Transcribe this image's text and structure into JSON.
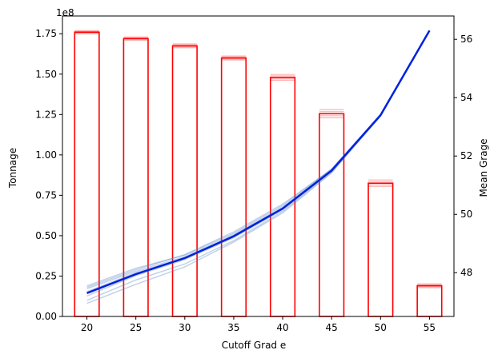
{
  "chart_data": {
    "type": "bar",
    "xlabel": "Cutoff Grad e",
    "ylabel_left": "Tonnage",
    "ylabel_right": "Mean Grage",
    "left_exponent_label": "1e8",
    "x_ticks": [
      20,
      25,
      30,
      35,
      40,
      45,
      50,
      55
    ],
    "x_tick_labels": [
      "20",
      "25",
      "30",
      "35",
      "40",
      "45",
      "50",
      "55"
    ],
    "xlim": [
      17.5,
      57.5
    ],
    "left_ylim": [
      0,
      1.86
    ],
    "left_y_ticks": [
      0,
      0.25,
      0.5,
      0.75,
      1.0,
      1.25,
      1.5,
      1.75
    ],
    "left_y_tick_labels": [
      "0.00",
      "0.25",
      "0.50",
      "0.75",
      "1.00",
      "1.25",
      "1.50",
      "1.75"
    ],
    "right_ylim": [
      46.5,
      56.8
    ],
    "right_y_ticks": [
      48,
      50,
      52,
      54,
      56
    ],
    "right_y_tick_labels": [
      "48",
      "50",
      "52",
      "54",
      "56"
    ],
    "bar_width": 2.5,
    "bars": {
      "color": "#ff0000",
      "x": [
        20,
        25,
        30,
        35,
        40,
        45,
        50,
        55
      ],
      "values": [
        1.76,
        1.72,
        1.675,
        1.6,
        1.48,
        1.255,
        0.825,
        0.19
      ],
      "spread": [
        0.01,
        0.01,
        0.012,
        0.012,
        0.018,
        0.025,
        0.02,
        0.012
      ]
    },
    "mean_grade_line": {
      "color": "#0022dd",
      "x": [
        20,
        25,
        30,
        35,
        40,
        45,
        50,
        55
      ],
      "values": [
        47.3,
        47.95,
        48.5,
        49.25,
        50.2,
        51.5,
        53.4,
        56.3
      ]
    },
    "mean_grade_realizations": {
      "color": "#4f7fc0",
      "x": [
        20,
        25,
        30,
        35,
        40,
        45,
        50,
        55
      ],
      "series": [
        [
          47.55,
          48.15,
          48.6,
          49.35,
          50.3,
          51.55,
          53.4,
          56.3
        ],
        [
          47.45,
          48.05,
          48.55,
          49.3,
          50.25,
          51.5,
          53.42,
          56.3
        ],
        [
          47.2,
          47.9,
          48.45,
          49.2,
          50.15,
          51.48,
          53.38,
          56.3
        ],
        [
          47.05,
          47.75,
          48.3,
          49.1,
          50.1,
          51.45,
          53.4,
          56.3
        ],
        [
          46.95,
          47.6,
          48.2,
          49.05,
          50.05,
          51.42,
          53.37,
          56.3
        ],
        [
          47.35,
          48.0,
          48.5,
          49.28,
          50.22,
          51.52,
          53.41,
          56.3
        ],
        [
          47.5,
          48.1,
          48.62,
          49.4,
          50.35,
          51.55,
          53.43,
          56.3
        ]
      ]
    }
  }
}
